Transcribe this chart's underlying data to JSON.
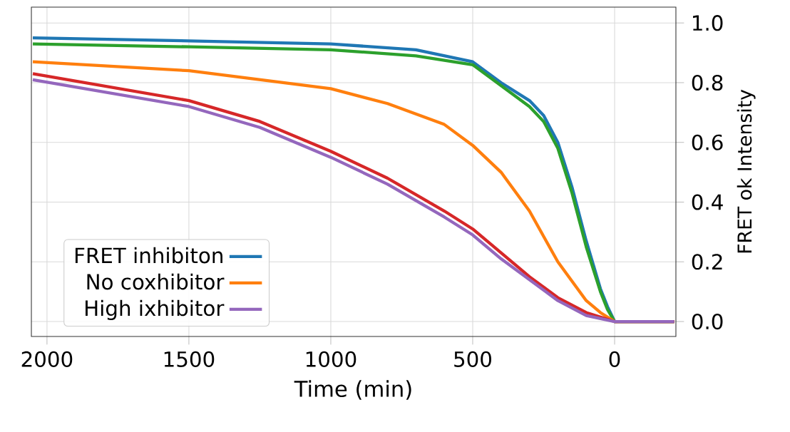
{
  "chart_data": {
    "type": "line",
    "xlabel": "Time (min)",
    "ylabel": "FRET ok Intensity",
    "xlim": [
      2055,
      -216
    ],
    "ylim": [
      -0.05,
      1.053
    ],
    "xticks": [
      2000,
      1500,
      1000,
      500,
      0
    ],
    "yticks": [
      {
        "value": 0,
        "label": "0.0"
      },
      {
        "value": 0.2,
        "label": "0.2"
      },
      {
        "value": 0.4,
        "label": "0.4"
      },
      {
        "value": 0.6,
        "label": "0.6"
      },
      {
        "value": 0.8,
        "label": "0.8"
      },
      {
        "value": 1.0,
        "label": "1.0"
      }
    ],
    "grid": true,
    "legend": "bottom left",
    "marker": "none",
    "line_style": "solid",
    "series": [
      {
        "name": "FRET inhibiton",
        "color": "#1f77b4",
        "x": [
          2050,
          1500,
          1000,
          700,
          500,
          400,
          300,
          250,
          200,
          150,
          100,
          50,
          25,
          0,
          -210
        ],
        "values": [
          0.95,
          0.94,
          0.93,
          0.91,
          0.87,
          0.8,
          0.74,
          0.69,
          0.6,
          0.45,
          0.27,
          0.11,
          0.05,
          0.0,
          0.0
        ]
      },
      {
        "color": "#2ca02c",
        "x": [
          2050,
          1500,
          1000,
          700,
          500,
          400,
          300,
          250,
          200,
          150,
          100,
          50,
          25,
          0,
          -210
        ],
        "values": [
          0.93,
          0.92,
          0.91,
          0.89,
          0.86,
          0.79,
          0.72,
          0.67,
          0.58,
          0.43,
          0.25,
          0.1,
          0.04,
          0.0,
          0.0
        ]
      },
      {
        "name": "No coxhibitor",
        "color": "#ff7f0e",
        "x": [
          2050,
          1500,
          1000,
          800,
          600,
          500,
          400,
          300,
          200,
          100,
          50,
          0,
          -210
        ],
        "values": [
          0.87,
          0.84,
          0.78,
          0.73,
          0.66,
          0.59,
          0.5,
          0.37,
          0.2,
          0.07,
          0.03,
          0.0,
          0.0
        ]
      },
      {
        "color": "#d62728",
        "x": [
          2050,
          1500,
          1250,
          1000,
          800,
          600,
          500,
          400,
          300,
          200,
          100,
          0,
          -210
        ],
        "values": [
          0.83,
          0.74,
          0.67,
          0.57,
          0.48,
          0.37,
          0.31,
          0.23,
          0.15,
          0.08,
          0.03,
          0.0,
          0.0
        ]
      },
      {
        "name": "High ixhibitor",
        "color": "#9467bd",
        "x": [
          2050,
          1500,
          1250,
          1000,
          800,
          600,
          500,
          400,
          300,
          200,
          100,
          0,
          -210
        ],
        "values": [
          0.81,
          0.72,
          0.65,
          0.55,
          0.46,
          0.35,
          0.29,
          0.21,
          0.14,
          0.07,
          0.02,
          0.0,
          0.0
        ]
      }
    ]
  }
}
